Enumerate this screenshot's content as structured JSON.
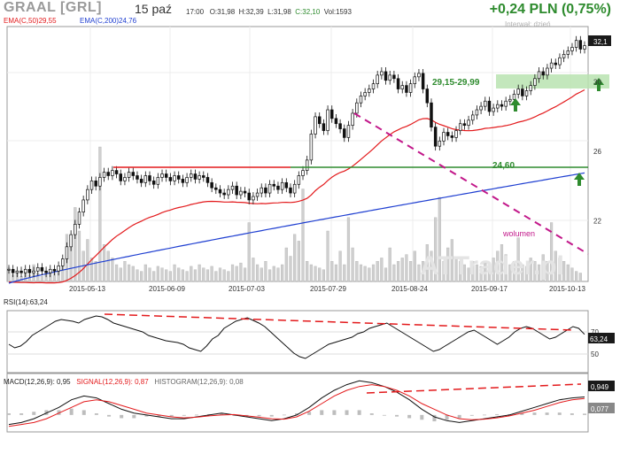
{
  "header": {
    "ticker": "GRAAL [GRL]",
    "date": "15 paź",
    "time": "17:00",
    "open": "O:31,98",
    "high": "H:32,39",
    "low": "L:31,98",
    "close": "C:32,10",
    "volume": "Vol:1593",
    "change": "+0,24 PLN (0,75%)"
  },
  "legend": {
    "ema50": "EMA(C,50)29,55",
    "ema200": "EMA(C,200)24,76",
    "interval": "Interwał: dzień",
    "watermark": "ATTrader.pl"
  },
  "colors": {
    "ema50": "#e31a1c",
    "ema200": "#1f3fd1",
    "support": "#2e8b2e",
    "resistance": "#e31a1c",
    "trend_dashed": "#c2188a",
    "zone": "#b9e3b0",
    "arrow": "#2e8b2e",
    "candle": "#111111",
    "volume": "#cfcfcf"
  },
  "chart_data": [
    {
      "type": "candlestick",
      "title": "GRAAL [GRL]",
      "x_ticks": [
        "2015-05-13",
        "2015-06-09",
        "2015-07-03",
        "2015-07-29",
        "2015-08-24",
        "2015-09-17",
        "2015-10-13"
      ],
      "y_ticks": [
        22,
        26,
        30,
        32.1
      ],
      "ylim": [
        18.5,
        33.2
      ],
      "last_price_label": "32,1",
      "close_series": [
        19.2,
        19.0,
        19.1,
        19.0,
        19.2,
        19.0,
        19.1,
        19.3,
        19.1,
        19.0,
        19.2,
        19.1,
        19.4,
        19.8,
        20.5,
        21.2,
        21.8,
        22.5,
        23.2,
        23.8,
        24.3,
        24.0,
        24.5,
        24.8,
        24.6,
        24.9,
        24.7,
        24.3,
        24.5,
        24.8,
        24.6,
        24.4,
        24.2,
        24.6,
        24.3,
        24.1,
        24.5,
        24.7,
        24.5,
        24.3,
        24.6,
        24.4,
        24.2,
        24.5,
        24.7,
        24.4,
        24.6,
        24.5,
        24.2,
        23.9,
        23.8,
        23.6,
        23.5,
        23.8,
        24.0,
        23.5,
        23.7,
        23.6,
        23.2,
        23.4,
        23.6,
        23.9,
        23.6,
        24.1,
        24.0,
        23.8,
        24.2,
        23.9,
        23.6,
        24.1,
        24.6,
        24.9,
        25.5,
        27.0,
        28.0,
        27.6,
        27.2,
        28.4,
        27.9,
        27.6,
        27.3,
        26.8,
        27.5,
        28.2,
        28.8,
        29.2,
        29.4,
        29.6,
        29.9,
        30.4,
        30.6,
        30.1,
        30.4,
        30.2,
        29.6,
        29.8,
        29.4,
        29.9,
        30.3,
        30.5,
        29.6,
        28.8,
        27.4,
        26.3,
        26.6,
        27.1,
        26.9,
        26.8,
        27.2,
        27.6,
        27.5,
        27.8,
        28.1,
        28.4,
        28.6,
        28.9,
        28.3,
        28.5,
        28.7,
        28.6,
        28.9,
        29.0,
        29.3,
        29.6,
        29.2,
        29.5,
        29.8,
        30.2,
        30.6,
        30.4,
        30.8,
        31.1,
        31.0,
        31.4,
        31.6,
        31.8,
        32.0,
        32.4,
        31.9,
        32.1
      ],
      "volume_relative": [
        0.08,
        0.04,
        0.05,
        0.03,
        0.06,
        0.04,
        0.1,
        0.05,
        0.03,
        0.04,
        0.06,
        0.05,
        0.08,
        0.12,
        0.28,
        0.22,
        0.44,
        0.3,
        0.18,
        0.25,
        0.14,
        0.12,
        0.8,
        0.22,
        0.18,
        0.14,
        0.1,
        0.08,
        0.12,
        0.1,
        0.09,
        0.07,
        0.06,
        0.1,
        0.08,
        0.06,
        0.09,
        0.08,
        0.07,
        0.06,
        0.1,
        0.08,
        0.07,
        0.06,
        0.09,
        0.07,
        0.1,
        0.08,
        0.07,
        0.09,
        0.06,
        0.08,
        0.07,
        0.06,
        0.1,
        0.09,
        0.11,
        0.08,
        0.35,
        0.14,
        0.1,
        0.08,
        0.12,
        0.07,
        0.09,
        0.08,
        0.1,
        0.2,
        0.15,
        0.28,
        0.24,
        0.55,
        0.12,
        0.1,
        0.09,
        0.08,
        0.07,
        0.3,
        0.12,
        0.1,
        0.18,
        0.1,
        0.38,
        0.2,
        0.12,
        0.1,
        0.09,
        0.08,
        0.1,
        0.12,
        0.14,
        0.08,
        0.2,
        0.1,
        0.12,
        0.14,
        0.16,
        0.12,
        0.18,
        0.1,
        0.12,
        0.22,
        0.18,
        0.38,
        0.5,
        0.12,
        0.2,
        0.25,
        0.14,
        0.12,
        0.1,
        0.08,
        0.12,
        0.1,
        0.09,
        0.12,
        0.1,
        0.14,
        0.18,
        0.22,
        0.16,
        0.1,
        0.12,
        0.26,
        0.1,
        0.09,
        0.14,
        0.12,
        0.1,
        0.16,
        0.12,
        0.35,
        0.18,
        0.14,
        0.12,
        0.1,
        0.08,
        0.06,
        0.05
      ],
      "ema50_end": 29.55,
      "ema200_end": 24.76,
      "annotations": {
        "support_label": "24,60",
        "zone_label": "29,15-29,99",
        "volume_label": "wolumen"
      }
    },
    {
      "type": "line",
      "title": "RSI(14):63,24",
      "y_ticks": [
        50,
        70
      ],
      "ylim": [
        20,
        90
      ],
      "last_value_label": "63,24",
      "values": [
        52,
        48,
        50,
        55,
        62,
        66,
        70,
        74,
        78,
        80,
        79,
        78,
        76,
        80,
        82,
        84,
        83,
        80,
        76,
        74,
        72,
        70,
        68,
        66,
        62,
        60,
        58,
        56,
        55,
        54,
        52,
        48,
        46,
        44,
        50,
        58,
        62,
        70,
        74,
        78,
        80,
        82,
        79,
        76,
        72,
        66,
        60,
        54,
        48,
        42,
        38,
        36,
        40,
        44,
        48,
        52,
        54,
        56,
        58,
        60,
        64,
        66,
        70,
        72,
        74,
        76,
        72,
        68,
        64,
        60,
        56,
        52,
        48,
        44,
        46,
        50,
        54,
        58,
        62,
        66,
        68,
        64,
        60,
        56,
        52,
        56,
        60,
        66,
        70,
        72,
        70,
        66,
        62,
        58,
        60,
        64,
        68,
        72,
        70,
        63.24
      ]
    },
    {
      "type": "line",
      "title": "MACD",
      "series": [
        {
          "name": "MACD(12,26,9): 0,95",
          "values": [
            -0.5,
            -0.4,
            -0.2,
            0.1,
            0.4,
            0.8,
            1.0,
            0.9,
            0.6,
            0.3,
            0.1,
            0.0,
            -0.1,
            -0.2,
            -0.2,
            -0.1,
            0.0,
            0.1,
            0.0,
            -0.1,
            -0.2,
            -0.3,
            -0.2,
            0.0,
            0.4,
            0.9,
            1.3,
            1.6,
            1.8,
            1.7,
            1.5,
            1.2,
            0.8,
            0.3,
            -0.1,
            -0.3,
            -0.4,
            -0.3,
            -0.2,
            -0.1,
            0.0,
            0.2,
            0.4,
            0.6,
            0.8,
            0.9,
            0.95
          ]
        },
        {
          "name": "SIGNAL(12,26,9): 0,87",
          "values": [
            -0.6,
            -0.5,
            -0.4,
            -0.2,
            0.1,
            0.4,
            0.7,
            0.8,
            0.7,
            0.5,
            0.3,
            0.1,
            0.0,
            -0.1,
            -0.15,
            -0.12,
            -0.05,
            0.0,
            0.02,
            -0.05,
            -0.12,
            -0.2,
            -0.22,
            -0.1,
            0.2,
            0.6,
            1.0,
            1.3,
            1.5,
            1.6,
            1.5,
            1.3,
            1.0,
            0.6,
            0.3,
            0.0,
            -0.2,
            -0.25,
            -0.22,
            -0.15,
            -0.05,
            0.1,
            0.25,
            0.45,
            0.65,
            0.8,
            0.87
          ]
        }
      ],
      "histogram_label": "HISTOGRAM(12,26,9): 0,08",
      "last_values": [
        "0,949",
        "0,077"
      ]
    }
  ]
}
